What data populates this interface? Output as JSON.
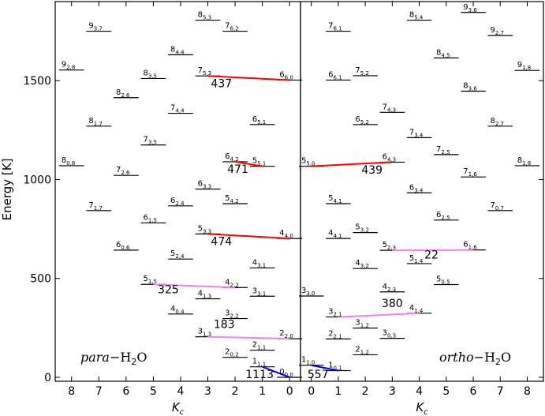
{
  "chart_data": {
    "type": "energy-level-diagram",
    "y_axis": {
      "label": "Energy  [K]",
      "ylim": [
        -20,
        1900
      ],
      "ticks": [
        0,
        500,
        1000,
        1500
      ]
    },
    "x_axis": {
      "label": "K_c"
    },
    "panels": [
      {
        "title_italic": "para",
        "title_rest": "−H",
        "title_sub": "2",
        "title_end": "O",
        "xlim": [
          8.6,
          -0.4
        ],
        "ticks": [
          8,
          7,
          6,
          5,
          4,
          3,
          2,
          1,
          0
        ],
        "levels": [
          {
            "j": "0",
            "ka": "0",
            "kc": "0",
            "x": 0,
            "energy": 0
          },
          {
            "j": "1",
            "ka": "1",
            "kc": "1",
            "x": 1,
            "energy": 53
          },
          {
            "j": "2",
            "ka": "0",
            "kc": "2",
            "x": 2,
            "energy": 101
          },
          {
            "j": "2",
            "ka": "1",
            "kc": "1",
            "x": 1,
            "energy": 137
          },
          {
            "j": "2",
            "ka": "2",
            "kc": "0",
            "x": 0,
            "energy": 195
          },
          {
            "j": "3",
            "ka": "1",
            "kc": "3",
            "x": 3,
            "energy": 205
          },
          {
            "j": "3",
            "ka": "2",
            "kc": "2",
            "x": 2,
            "energy": 297
          },
          {
            "j": "4",
            "ka": "0",
            "kc": "4",
            "x": 4,
            "energy": 320
          },
          {
            "j": "4",
            "ka": "1",
            "kc": "3",
            "x": 3,
            "energy": 397
          },
          {
            "j": "3",
            "ka": "3",
            "kc": "1",
            "x": 1,
            "energy": 410
          },
          {
            "j": "4",
            "ka": "2",
            "kc": "2",
            "x": 2,
            "energy": 454
          },
          {
            "j": "5",
            "ka": "1",
            "kc": "5",
            "x": 5,
            "energy": 470
          },
          {
            "j": "4",
            "ka": "3",
            "kc": "1",
            "x": 1,
            "energy": 553
          },
          {
            "j": "5",
            "ka": "2",
            "kc": "4",
            "x": 4,
            "energy": 598
          },
          {
            "j": "6",
            "ka": "0",
            "kc": "6",
            "x": 6,
            "energy": 643
          },
          {
            "j": "4",
            "ka": "4",
            "kc": "0",
            "x": 0,
            "energy": 702
          },
          {
            "j": "5",
            "ka": "3",
            "kc": "3",
            "x": 3,
            "energy": 725
          },
          {
            "j": "6",
            "ka": "1",
            "kc": "5",
            "x": 5,
            "energy": 781
          },
          {
            "j": "5",
            "ka": "4",
            "kc": "2",
            "x": 2,
            "energy": 878
          },
          {
            "j": "7",
            "ka": "1",
            "kc": "7",
            "x": 7,
            "energy": 843
          },
          {
            "j": "6",
            "ka": "2",
            "kc": "4",
            "x": 4,
            "energy": 867
          },
          {
            "j": "6",
            "ka": "3",
            "kc": "3",
            "x": 3,
            "energy": 952
          },
          {
            "j": "7",
            "ka": "2",
            "kc": "6",
            "x": 6,
            "energy": 1021
          },
          {
            "j": "5",
            "ka": "5",
            "kc": "1",
            "x": 1,
            "energy": 1067
          },
          {
            "j": "8",
            "ka": "0",
            "kc": "8",
            "x": 8,
            "energy": 1070
          },
          {
            "j": "6",
            "ka": "4",
            "kc": "2",
            "x": 2,
            "energy": 1090
          },
          {
            "j": "7",
            "ka": "3",
            "kc": "5",
            "x": 5,
            "energy": 1175
          },
          {
            "j": "6",
            "ka": "5",
            "kc": "1",
            "x": 1,
            "energy": 1278
          },
          {
            "j": "8",
            "ka": "1",
            "kc": "7",
            "x": 7,
            "energy": 1270
          },
          {
            "j": "7",
            "ka": "4",
            "kc": "4",
            "x": 4,
            "energy": 1335
          },
          {
            "j": "8",
            "ka": "2",
            "kc": "6",
            "x": 6,
            "energy": 1414
          },
          {
            "j": "6",
            "ka": "6",
            "kc": "0",
            "x": 0,
            "energy": 1503
          },
          {
            "j": "7",
            "ka": "5",
            "kc": "3",
            "x": 3,
            "energy": 1524
          },
          {
            "j": "8",
            "ka": "3",
            "kc": "5",
            "x": 5,
            "energy": 1511
          },
          {
            "j": "9",
            "ka": "2",
            "kc": "8",
            "x": 8,
            "energy": 1554
          },
          {
            "j": "8",
            "ka": "4",
            "kc": "4",
            "x": 4,
            "energy": 1631
          },
          {
            "j": "9",
            "ka": "3",
            "kc": "7",
            "x": 7,
            "energy": 1750
          },
          {
            "j": "7",
            "ka": "6",
            "kc": "2",
            "x": 2,
            "energy": 1750
          },
          {
            "j": "8",
            "ka": "5",
            "kc": "3",
            "x": 3,
            "energy": 1806
          }
        ],
        "transitions": [
          {
            "from_x": 1,
            "from_e": 53,
            "to_x": 0,
            "to_e": 0,
            "label": "1113",
            "color": "#0000ff",
            "label_x": 1.1,
            "label_e": -5
          },
          {
            "from_x": 3,
            "from_e": 205,
            "to_x": 0,
            "to_e": 195,
            "label": "183",
            "color": "#ee82ee",
            "label_x": 2.4,
            "label_e": 250
          },
          {
            "from_x": 5,
            "from_e": 470,
            "to_x": 2,
            "to_e": 454,
            "label": "325",
            "color": "#ee82ee",
            "label_x": 4.45,
            "label_e": 425
          },
          {
            "from_x": 3,
            "from_e": 725,
            "to_x": 0,
            "to_e": 702,
            "label": "474",
            "color": "#ff0000",
            "label_x": 2.5,
            "label_e": 668
          },
          {
            "from_x": 2,
            "from_e": 1090,
            "to_x": 1,
            "to_e": 1067,
            "label": "471",
            "color": "#ff0000",
            "label_x": 1.9,
            "label_e": 1033
          },
          {
            "from_x": 3,
            "from_e": 1524,
            "to_x": 0,
            "to_e": 1503,
            "label": "437",
            "color": "#ff0000",
            "label_x": 2.5,
            "label_e": 1467
          }
        ]
      },
      {
        "title_italic": "ortho",
        "title_rest": "−H",
        "title_sub": "2",
        "title_end": "O",
        "xlim": [
          -0.4,
          8.6
        ],
        "ticks": [
          0,
          1,
          2,
          3,
          4,
          5,
          6,
          7,
          8
        ],
        "levels": [
          {
            "j": "1",
            "ka": "0",
            "kc": "1",
            "x": 1,
            "energy": 34
          },
          {
            "j": "1",
            "ka": "1",
            "kc": "0",
            "x": 0,
            "energy": 61
          },
          {
            "j": "2",
            "ka": "1",
            "kc": "2",
            "x": 2,
            "energy": 114
          },
          {
            "j": "2",
            "ka": "2",
            "kc": "1",
            "x": 1,
            "energy": 194
          },
          {
            "j": "3",
            "ka": "0",
            "kc": "3",
            "x": 3,
            "energy": 197
          },
          {
            "j": "3",
            "ka": "1",
            "kc": "2",
            "x": 2,
            "energy": 249
          },
          {
            "j": "3",
            "ka": "2",
            "kc": "1",
            "x": 1,
            "energy": 305
          },
          {
            "j": "4",
            "ka": "1",
            "kc": "4",
            "x": 4,
            "energy": 324
          },
          {
            "j": "3",
            "ka": "3",
            "kc": "0",
            "x": 0,
            "energy": 411
          },
          {
            "j": "4",
            "ka": "2",
            "kc": "3",
            "x": 3,
            "energy": 432
          },
          {
            "j": "5",
            "ka": "0",
            "kc": "5",
            "x": 5,
            "energy": 469
          },
          {
            "j": "4",
            "ka": "3",
            "kc": "2",
            "x": 2,
            "energy": 550
          },
          {
            "j": "5",
            "ka": "1",
            "kc": "4",
            "x": 4,
            "energy": 575
          },
          {
            "j": "5",
            "ka": "2",
            "kc": "3",
            "x": 3,
            "energy": 642
          },
          {
            "j": "6",
            "ka": "1",
            "kc": "6",
            "x": 6,
            "energy": 644
          },
          {
            "j": "4",
            "ka": "4",
            "kc": "1",
            "x": 1,
            "energy": 702
          },
          {
            "j": "5",
            "ka": "3",
            "kc": "2",
            "x": 2,
            "energy": 732
          },
          {
            "j": "6",
            "ka": "2",
            "kc": "5",
            "x": 5,
            "energy": 795
          },
          {
            "j": "7",
            "ka": "0",
            "kc": "7",
            "x": 7,
            "energy": 843
          },
          {
            "j": "5",
            "ka": "4",
            "kc": "1",
            "x": 1,
            "energy": 878
          },
          {
            "j": "6",
            "ka": "3",
            "kc": "4",
            "x": 4,
            "energy": 933
          },
          {
            "j": "7",
            "ka": "1",
            "kc": "6",
            "x": 6,
            "energy": 1013
          },
          {
            "j": "5",
            "ka": "5",
            "kc": "0",
            "x": 0,
            "energy": 1067
          },
          {
            "j": "8",
            "ka": "1",
            "kc": "8",
            "x": 8,
            "energy": 1070
          },
          {
            "j": "6",
            "ka": "4",
            "kc": "3",
            "x": 3,
            "energy": 1088
          },
          {
            "j": "7",
            "ka": "2",
            "kc": "5",
            "x": 5,
            "energy": 1126
          },
          {
            "j": "7",
            "ka": "3",
            "kc": "4",
            "x": 4,
            "energy": 1212
          },
          {
            "j": "6",
            "ka": "5",
            "kc": "2",
            "x": 2,
            "energy": 1278
          },
          {
            "j": "8",
            "ka": "2",
            "kc": "7",
            "x": 7,
            "energy": 1270
          },
          {
            "j": "7",
            "ka": "4",
            "kc": "3",
            "x": 3,
            "energy": 1340
          },
          {
            "j": "8",
            "ka": "3",
            "kc": "6",
            "x": 6,
            "energy": 1447
          },
          {
            "j": "6",
            "ka": "6",
            "kc": "1",
            "x": 1,
            "energy": 1503
          },
          {
            "j": "7",
            "ka": "5",
            "kc": "2",
            "x": 2,
            "energy": 1525
          },
          {
            "j": "9",
            "ka": "1",
            "kc": "8",
            "x": 8,
            "energy": 1552
          },
          {
            "j": "8",
            "ka": "4",
            "kc": "5",
            "x": 5,
            "energy": 1615
          },
          {
            "j": "9",
            "ka": "2",
            "kc": "7",
            "x": 7,
            "energy": 1729
          },
          {
            "j": "7",
            "ka": "6",
            "kc": "1",
            "x": 1,
            "energy": 1750
          },
          {
            "j": "8",
            "ka": "5",
            "kc": "4",
            "x": 4,
            "energy": 1806
          },
          {
            "j": "9",
            "ka": "3",
            "kc": "6",
            "x": 6,
            "energy": 1845
          }
        ],
        "transitions": [
          {
            "from_x": 0,
            "from_e": 61,
            "to_x": 1,
            "to_e": 34,
            "label": "557",
            "color": "#0000ff",
            "label_x": 0.25,
            "label_e": -5
          },
          {
            "from_x": 1,
            "from_e": 305,
            "to_x": 4,
            "to_e": 324,
            "label": "380",
            "color": "#ee82ee",
            "label_x": 3.0,
            "label_e": 355
          },
          {
            "from_x": 3,
            "from_e": 642,
            "to_x": 6,
            "to_e": 644,
            "label": "22",
            "color": "#ee82ee",
            "label_x": 4.45,
            "label_e": 600
          },
          {
            "from_x": 0,
            "from_e": 1067,
            "to_x": 3,
            "to_e": 1088,
            "label": "439",
            "color": "#ff0000",
            "label_x": 2.25,
            "label_e": 1030
          }
        ]
      }
    ]
  }
}
